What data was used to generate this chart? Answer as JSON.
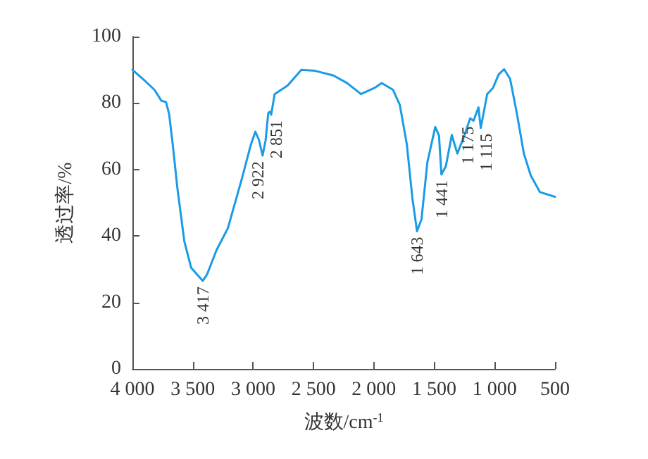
{
  "chart_data": {
    "type": "line",
    "xlabel": "波数/cm$^{-1}$",
    "ylabel": "透过率/%",
    "xlim": [
      4000,
      500
    ],
    "xticks": [
      {
        "value": 4000,
        "label": "4 000"
      },
      {
        "value": 3500,
        "label": "3 500"
      },
      {
        "value": 3000,
        "label": "3 000"
      },
      {
        "value": 2500,
        "label": "2 500"
      },
      {
        "value": 2000,
        "label": "2 000"
      },
      {
        "value": 1500,
        "label": "1 500"
      },
      {
        "value": 1000,
        "label": "1 000"
      },
      500
    ],
    "ylim": [
      0,
      100
    ],
    "yticks": [
      0,
      20,
      40,
      60,
      80,
      100
    ],
    "grid": false,
    "marker": "none",
    "line_style": "solid",
    "series": [
      {
        "color": "#1a9be6",
        "x": [
          4000,
          3894,
          3818,
          3760,
          3722,
          3696,
          3666,
          3627,
          3570,
          3513,
          3417,
          3381,
          3304,
          3210,
          3096,
          3019,
          2982,
          2951,
          2922,
          2897,
          2875,
          2862,
          2851,
          2822,
          2715,
          2601,
          2487,
          2335,
          2221,
          2107,
          1993,
          1936,
          1842,
          1785,
          1727,
          1682,
          1643,
          1606,
          1557,
          1492,
          1461,
          1441,
          1404,
          1355,
          1309,
          1252,
          1203,
          1175,
          1134,
          1115,
          1062,
          1013,
          967,
          922,
          872,
          815,
          758,
          701,
          625,
          511,
          500
        ],
        "values": [
          90,
          86.6,
          84,
          80.7,
          80.3,
          76.7,
          67.5,
          54.2,
          38.4,
          30.4,
          26.5,
          28.5,
          35.7,
          42.3,
          56.9,
          67.5,
          71.4,
          68.8,
          64.2,
          68.8,
          77,
          77.4,
          76.5,
          82.7,
          85.3,
          90,
          89.7,
          88.3,
          86,
          82.7,
          84.6,
          86,
          84,
          79.4,
          67.5,
          51.6,
          41.4,
          45,
          62.2,
          72.8,
          70.2,
          58.5,
          61,
          70.4,
          64.8,
          70.1,
          75.4,
          74.7,
          78.7,
          72.5,
          82.7,
          84.6,
          88.6,
          90.2,
          87.3,
          76.7,
          64.8,
          58.2,
          53.2,
          51.9,
          51.8
        ]
      }
    ],
    "annotations": [
      {
        "text": "3 417",
        "x": 3417,
        "y": 26.5
      },
      {
        "text": "2 922",
        "x": 2922,
        "y": 64.2
      },
      {
        "text": "2 851",
        "x": 2851,
        "y": 76.5
      },
      {
        "text": "1 643",
        "x": 1643,
        "y": 41.4
      },
      {
        "text": "1 441",
        "x": 1441,
        "y": 58.5
      },
      {
        "text": "1 175",
        "x": 1175,
        "y": 74.7
      },
      {
        "text": "1 115",
        "x": 1115,
        "y": 72.5
      }
    ]
  }
}
